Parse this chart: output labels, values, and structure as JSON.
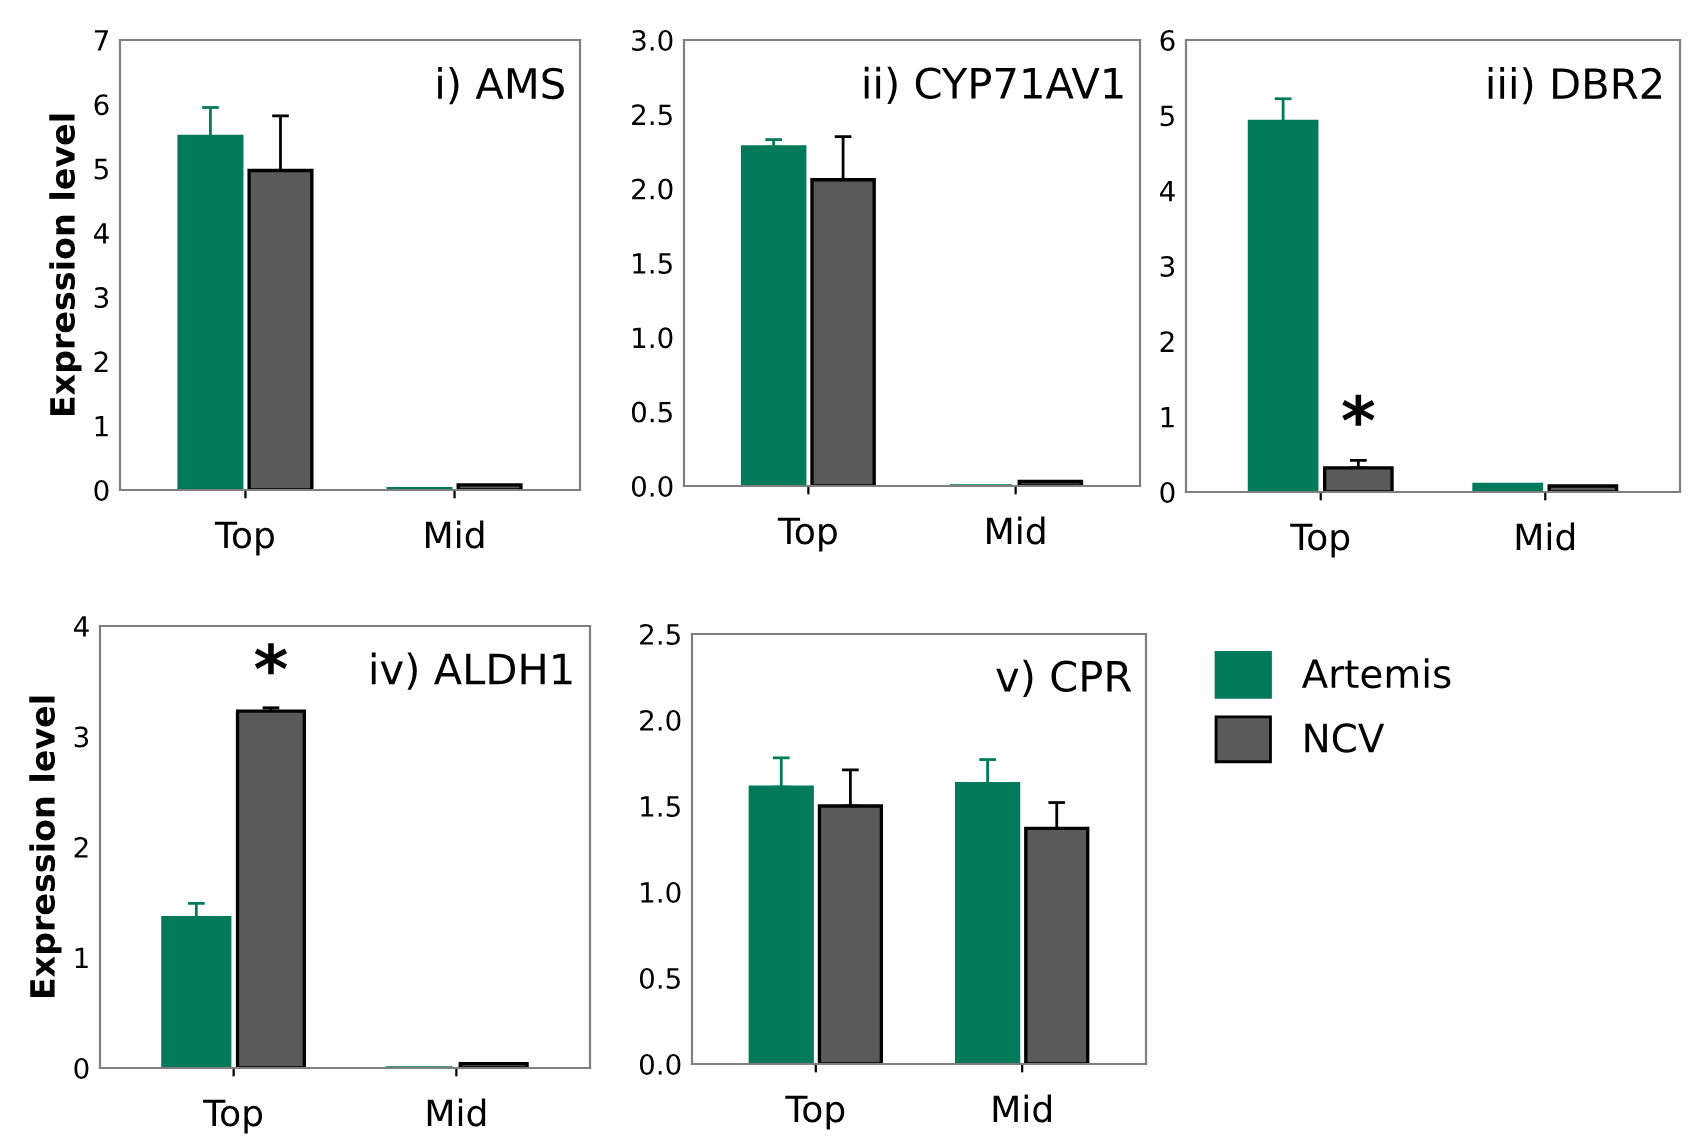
{
  "chart_data": [
    {
      "type": "bar",
      "title": "i) AMS",
      "ylabel": "Expression level",
      "categories": [
        "Top",
        "Mid"
      ],
      "ylim": [
        0,
        7
      ],
      "yticks": [
        0,
        1,
        2,
        3,
        4,
        5,
        6,
        7
      ],
      "series": [
        {
          "color": "#007a5a",
          "values": [
            5.5,
            0.02
          ],
          "errors": [
            [
              5.5,
              5.95
            ],
            null
          ]
        },
        {
          "color": "#5a5a5a",
          "values": [
            4.97,
            0.08
          ],
          "errors": [
            [
              4.97,
              5.82
            ],
            null
          ]
        }
      ]
    },
    {
      "type": "bar",
      "title": "ii) CYP71AV1",
      "categories": [
        "Top",
        "Mid"
      ],
      "ylim": [
        0,
        3
      ],
      "yticks": [
        {
          "value": 0,
          "label": "0.0"
        },
        {
          "value": 0.5,
          "label": "0.5"
        },
        {
          "value": 1,
          "label": "1.0"
        },
        {
          "value": 1.5,
          "label": "1.5"
        },
        {
          "value": 2,
          "label": "2.0"
        },
        {
          "value": 2.5,
          "label": "2.5"
        },
        {
          "value": 3,
          "label": "3.0"
        }
      ],
      "series": [
        {
          "color": "#007a5a",
          "values": [
            2.28,
            0
          ],
          "errors": [
            [
              2.28,
              2.33
            ],
            null
          ]
        },
        {
          "color": "#5a5a5a",
          "values": [
            2.06,
            0.03
          ],
          "errors": [
            [
              2.06,
              2.35
            ],
            null
          ]
        }
      ]
    },
    {
      "type": "bar",
      "title": "iii) DBR2",
      "categories": [
        "Top",
        "Mid"
      ],
      "ylim": [
        0,
        6
      ],
      "yticks": [
        0,
        1,
        2,
        3,
        4,
        5,
        6
      ],
      "annotations": [
        {
          "text": "*",
          "x": "Top",
          "y": 0.45
        }
      ],
      "series": [
        {
          "color": "#007a5a",
          "values": [
            4.92,
            0.1
          ],
          "errors": [
            [
              4.92,
              5.22
            ],
            null
          ]
        },
        {
          "color": "#5a5a5a",
          "values": [
            0.32,
            0.08
          ],
          "errors": [
            [
              0.32,
              0.42
            ],
            null
          ]
        }
      ]
    },
    {
      "type": "bar",
      "title": "iv) ALDH1",
      "ylabel": "Expression level",
      "categories": [
        "Top",
        "Mid"
      ],
      "ylim": [
        0,
        4
      ],
      "yticks": [
        0,
        1,
        2,
        3,
        4
      ],
      "annotations": [
        {
          "text": "*",
          "x": "Top",
          "y": 3.27
        }
      ],
      "series": [
        {
          "color": "#007a5a",
          "values": [
            1.36,
            0
          ],
          "errors": [
            [
              1.36,
              1.49
            ],
            null
          ]
        },
        {
          "color": "#5a5a5a",
          "values": [
            3.23,
            0.04
          ],
          "errors": [
            [
              3.23,
              3.26
            ],
            null
          ]
        }
      ]
    },
    {
      "type": "bar",
      "title": "v) CPR",
      "categories": [
        "Top",
        "Mid"
      ],
      "ylim": [
        0,
        2.5
      ],
      "yticks": [
        {
          "value": 0,
          "label": "0.0"
        },
        {
          "value": 0.5,
          "label": "0.5"
        },
        {
          "value": 1,
          "label": "1.0"
        },
        {
          "value": 1.5,
          "label": "1.5"
        },
        {
          "value": 2,
          "label": "2.0"
        },
        {
          "value": 2.5,
          "label": "2.5"
        }
      ],
      "legend": "right",
      "series": [
        {
          "name": "Artemis",
          "color": "#007a5a",
          "values": [
            1.61,
            1.63
          ],
          "errors": [
            [
              1.61,
              1.78
            ],
            [
              1.63,
              1.77
            ]
          ]
        },
        {
          "name": "NCV",
          "color": "#5a5a5a",
          "values": [
            1.5,
            1.37
          ],
          "errors": [
            [
              1.5,
              1.71
            ],
            [
              1.37,
              1.52
            ]
          ]
        }
      ]
    }
  ]
}
